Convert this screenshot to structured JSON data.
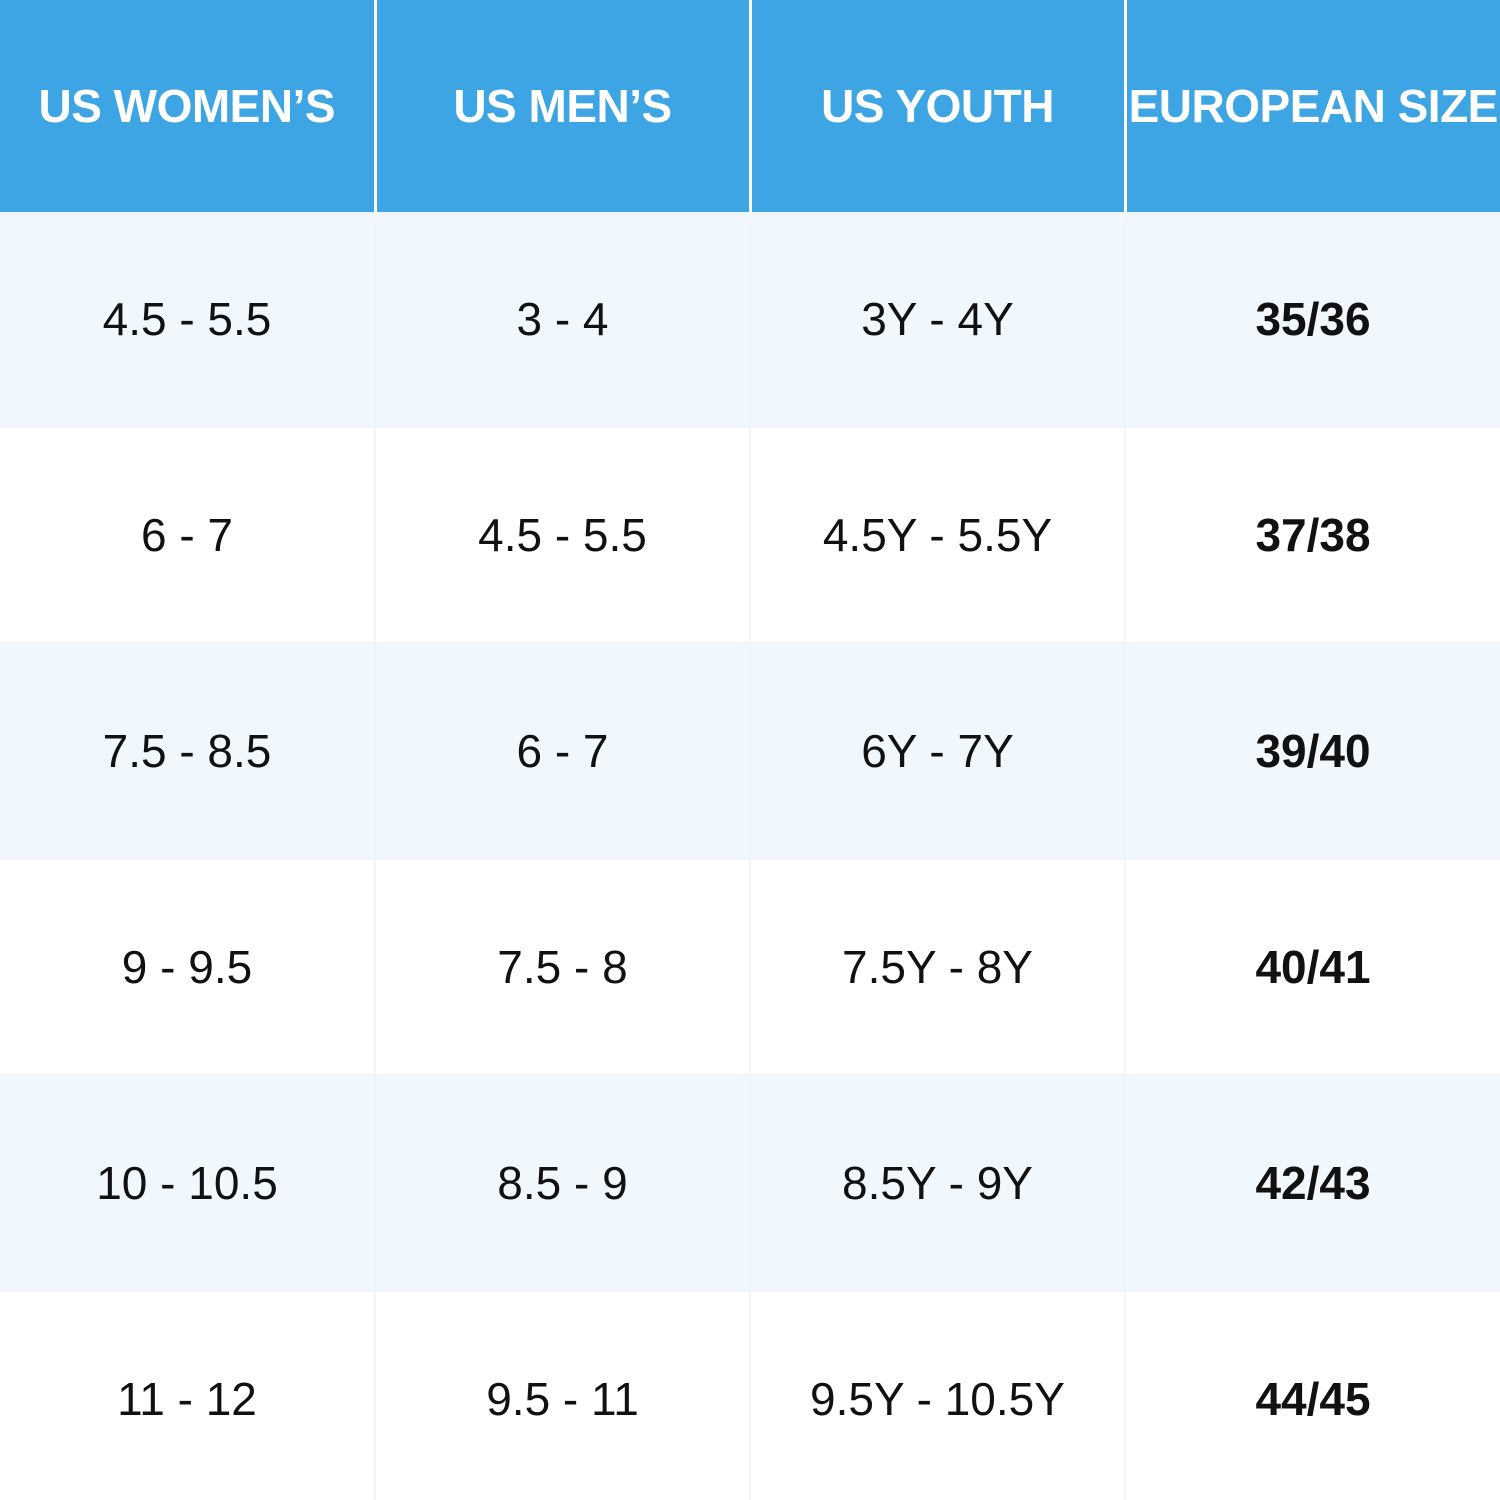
{
  "colors": {
    "header_bg": "#3da5e3",
    "header_text": "#ffffff",
    "row_shaded": "#f0f7fd",
    "row_plain": "#ffffff",
    "cell_text": "#111111"
  },
  "table": {
    "headers": [
      "US WOMEN’S",
      "US MEN’S",
      "US YOUTH",
      "EUROPEAN SIZE"
    ],
    "rows": [
      [
        "4.5 - 5.5",
        "3 - 4",
        "3Y - 4Y",
        "35/36"
      ],
      [
        "6 - 7",
        "4.5 - 5.5",
        "4.5Y - 5.5Y",
        "37/38"
      ],
      [
        "7.5 - 8.5",
        "6 - 7",
        "6Y - 7Y",
        "39/40"
      ],
      [
        "9 - 9.5",
        "7.5 - 8",
        "7.5Y - 8Y",
        "40/41"
      ],
      [
        "10 - 10.5",
        "8.5 - 9",
        "8.5Y - 9Y",
        "42/43"
      ],
      [
        "11 - 12",
        "9.5 - 11",
        "9.5Y - 10.5Y",
        "44/45"
      ]
    ]
  }
}
